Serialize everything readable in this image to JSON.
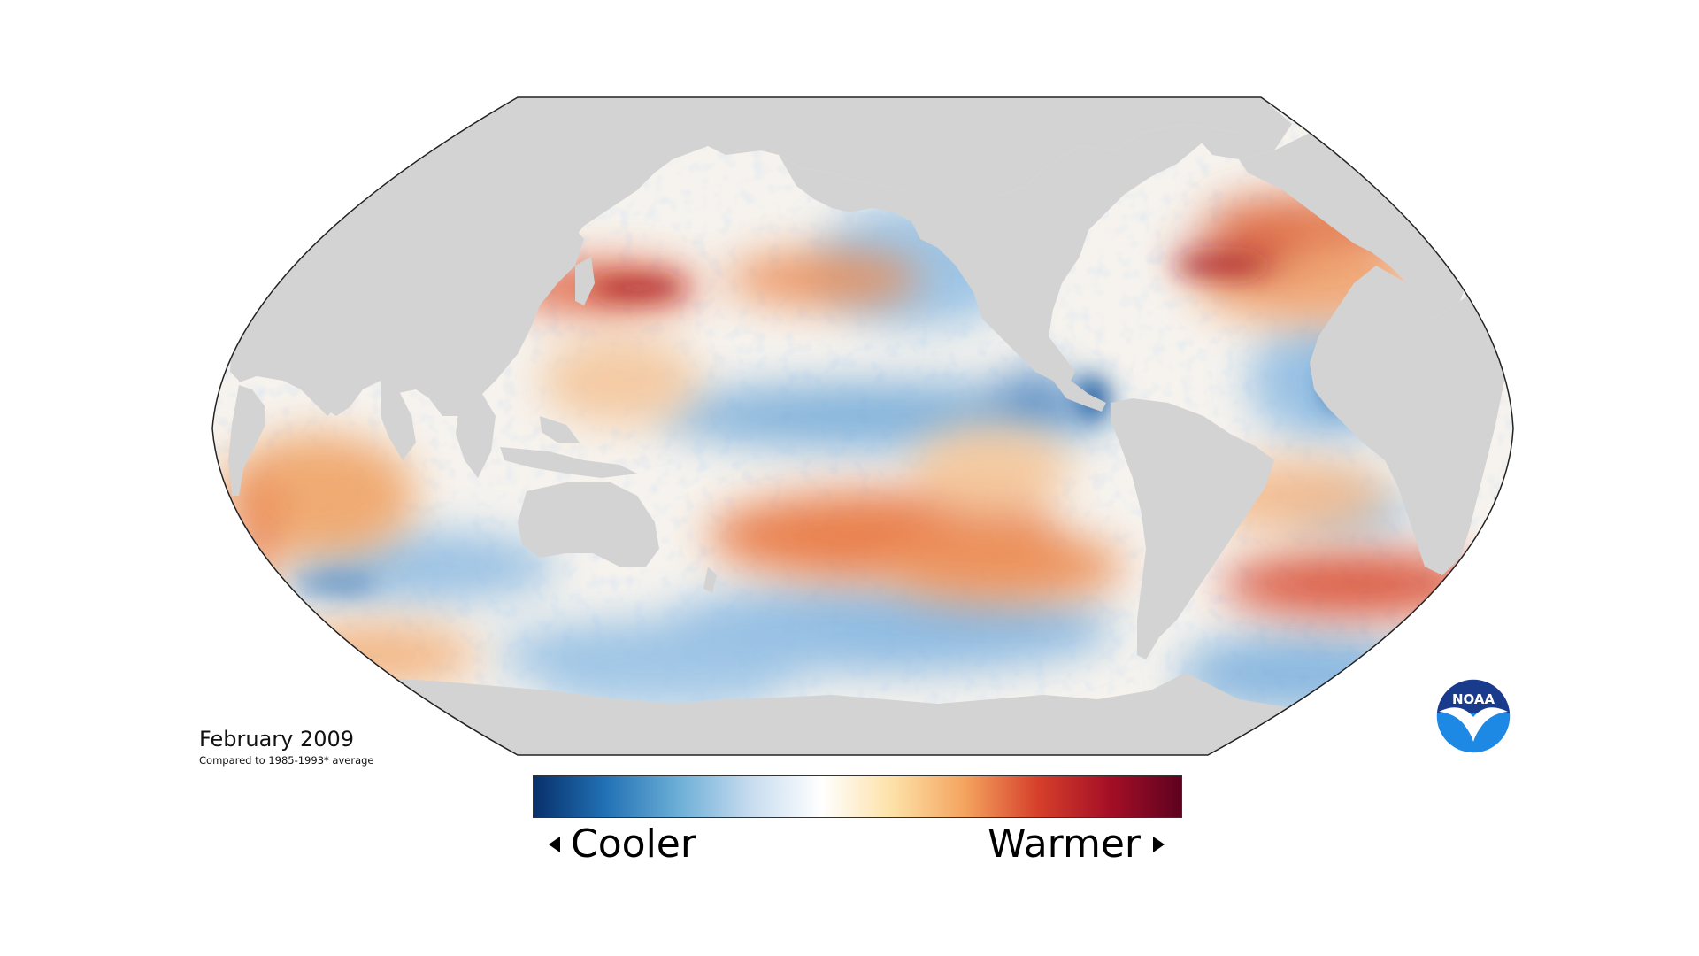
{
  "map": {
    "date_title": "February 2009",
    "subtitle": "Compared to 1985-1993* average",
    "legend": {
      "left_label": "Cooler",
      "right_label": "Warmer",
      "colors": [
        "#08306b",
        "#2171b5",
        "#6baed6",
        "#c6dbef",
        "#ffffff",
        "#fde0a6",
        "#f4a35e",
        "#d6402b",
        "#a50f26",
        "#5e0220"
      ]
    },
    "land_color": "#d3d3d3",
    "logo": {
      "text": "NOAA",
      "colors": [
        "#1a3a8c",
        "#1e88e5",
        "#ffffff"
      ]
    }
  }
}
